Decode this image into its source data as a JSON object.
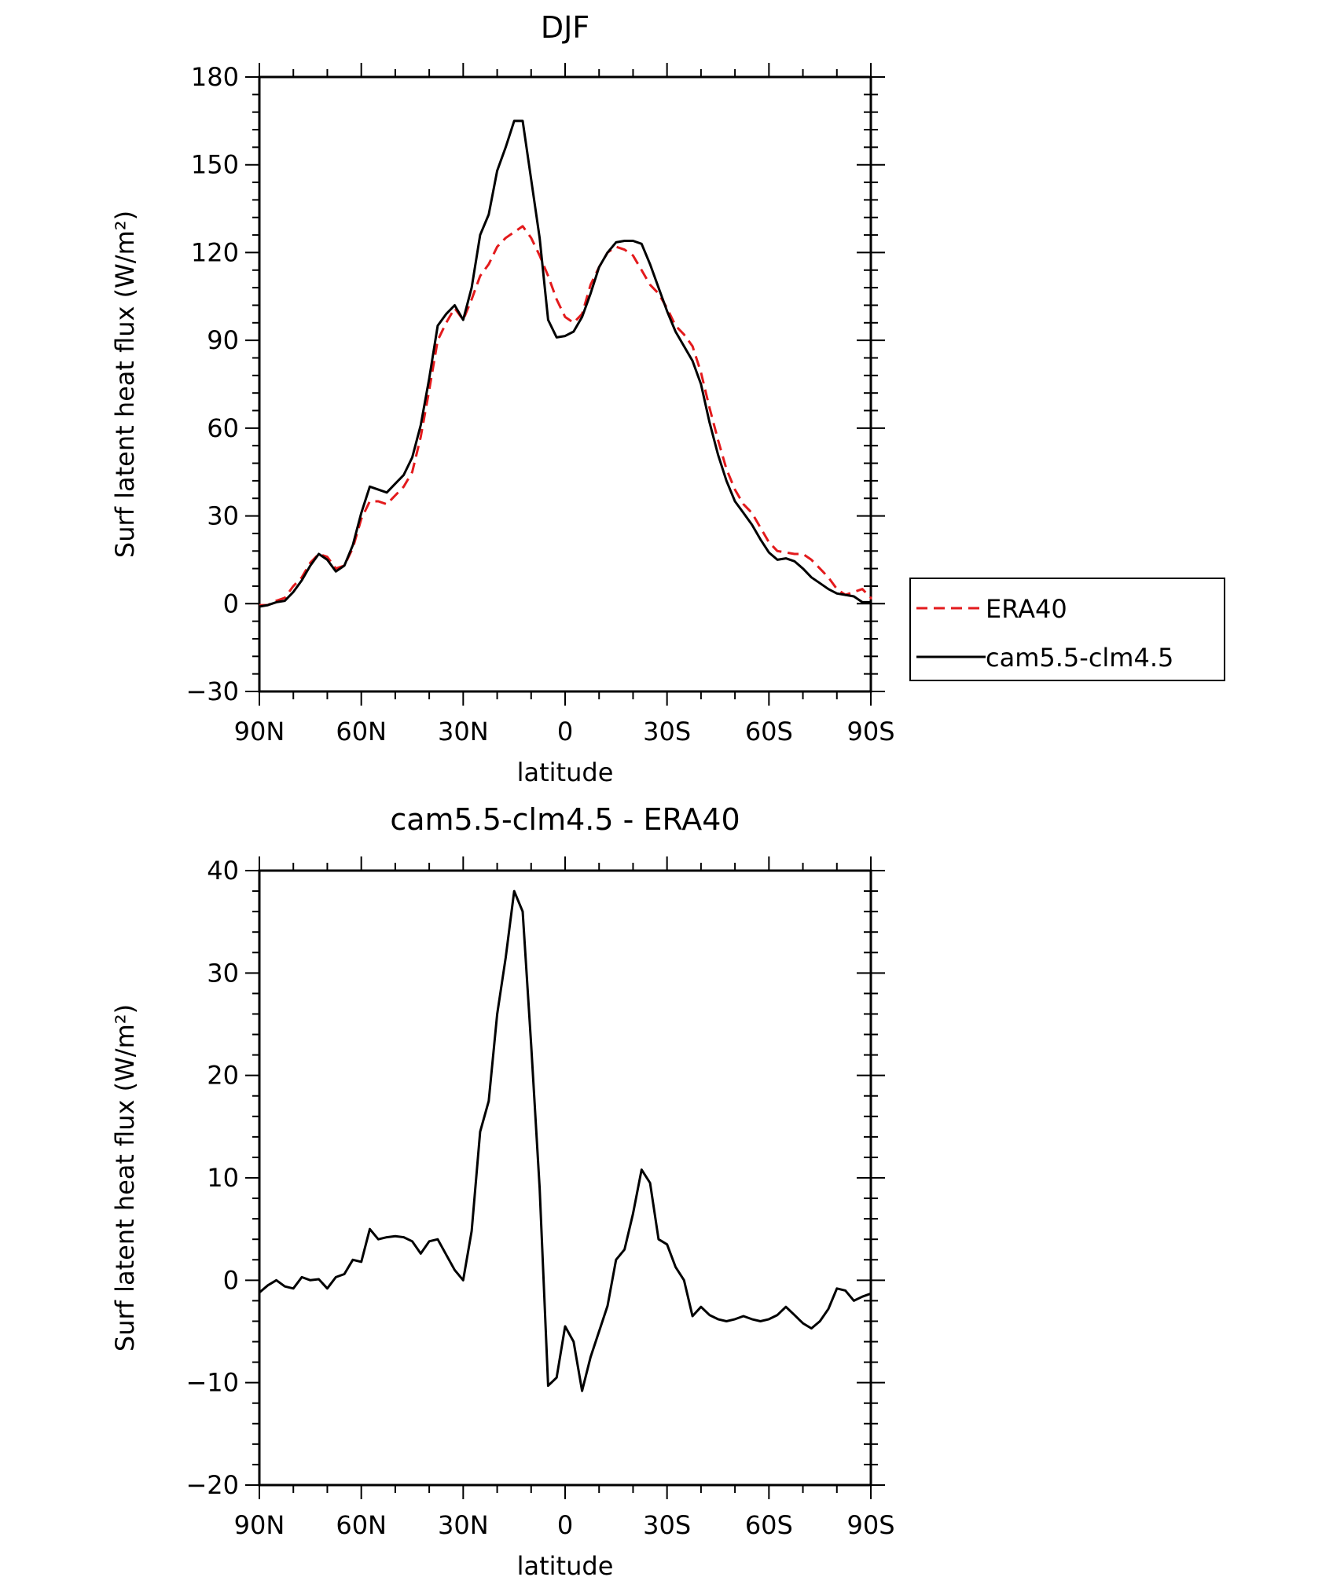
{
  "chart_data": [
    {
      "type": "line",
      "title": "DJF",
      "xlabel": "latitude",
      "ylabel": "Surf latent heat flux (W/m²)",
      "xlim": [
        90,
        -90
      ],
      "ylim": [
        -30,
        180
      ],
      "yticks": [
        -30,
        0,
        30,
        60,
        90,
        120,
        150,
        180
      ],
      "xticks": [
        {
          "value": 90,
          "label": "90N"
        },
        {
          "value": 60,
          "label": "60N"
        },
        {
          "value": 30,
          "label": "30N"
        },
        {
          "value": 0,
          "label": "0"
        },
        {
          "value": -30,
          "label": "30S"
        },
        {
          "value": -60,
          "label": "60S"
        },
        {
          "value": -90,
          "label": "90S"
        }
      ],
      "grid": false,
      "legend": {
        "placement": "right",
        "entries": [
          {
            "name": "ERA40",
            "color": "#e31a1c",
            "style": "dashed"
          },
          {
            "name": "cam5.5-clm4.5",
            "color": "#000000",
            "style": "solid"
          }
        ]
      },
      "series": [
        {
          "name": "ERA40",
          "color": "#e31a1c",
          "style": "dashed",
          "points": [
            [
              90,
              -0.5
            ],
            [
              87.5,
              -0.5
            ],
            [
              85,
              1
            ],
            [
              82.5,
              2
            ],
            [
              80,
              6
            ],
            [
              77.5,
              9
            ],
            [
              75,
              14
            ],
            [
              72.5,
              17
            ],
            [
              70,
              16
            ],
            [
              67.5,
              12
            ],
            [
              65,
              13
            ],
            [
              62.5,
              19
            ],
            [
              60,
              29
            ],
            [
              57.5,
              35
            ],
            [
              55,
              35
            ],
            [
              52.5,
              34
            ],
            [
              50,
              37
            ],
            [
              47.5,
              40
            ],
            [
              45,
              45
            ],
            [
              42.5,
              57
            ],
            [
              40,
              73
            ],
            [
              37.5,
              90
            ],
            [
              35,
              96
            ],
            [
              32.5,
              101
            ],
            [
              30,
              97
            ],
            [
              27.5,
              104
            ],
            [
              25,
              112
            ],
            [
              22.5,
              116
            ],
            [
              20,
              122
            ],
            [
              17.5,
              125
            ],
            [
              15,
              127
            ],
            [
              12.5,
              129
            ],
            [
              10,
              125
            ],
            [
              7.5,
              119
            ],
            [
              5,
              112
            ],
            [
              2.5,
              104
            ],
            [
              0,
              98
            ],
            [
              -2.5,
              96
            ],
            [
              -5,
              99
            ],
            [
              -7.5,
              109
            ],
            [
              -10,
              115
            ],
            [
              -12.5,
              120
            ],
            [
              -15,
              122
            ],
            [
              -17.5,
              121
            ],
            [
              -20,
              119
            ],
            [
              -22.5,
              114
            ],
            [
              -25,
              109
            ],
            [
              -27.5,
              106
            ],
            [
              -30,
              101
            ],
            [
              -32.5,
              95
            ],
            [
              -35,
              92
            ],
            [
              -37.5,
              88
            ],
            [
              -40,
              79
            ],
            [
              -42.5,
              67
            ],
            [
              -45,
              56
            ],
            [
              -47.5,
              46
            ],
            [
              -50,
              39
            ],
            [
              -52.5,
              34
            ],
            [
              -55,
              31
            ],
            [
              -57.5,
              26
            ],
            [
              -60,
              21
            ],
            [
              -62.5,
              18
            ],
            [
              -65,
              17.5
            ],
            [
              -67.5,
              17
            ],
            [
              -70,
              17
            ],
            [
              -72.5,
              15
            ],
            [
              -75,
              12
            ],
            [
              -77.5,
              9
            ],
            [
              -80,
              5
            ],
            [
              -82.5,
              3
            ],
            [
              -85,
              4
            ],
            [
              -87.5,
              5
            ],
            [
              -90,
              2
            ],
            [
              -90,
              1.5
            ]
          ]
        },
        {
          "name": "cam5.5-clm4.5",
          "color": "#000000",
          "style": "solid",
          "points": [
            [
              90,
              -1
            ],
            [
              87.5,
              -0.5
            ],
            [
              85,
              0.5
            ],
            [
              82.5,
              1
            ],
            [
              80,
              4
            ],
            [
              77.5,
              8
            ],
            [
              75,
              13
            ],
            [
              72.5,
              17
            ],
            [
              70,
              15
            ],
            [
              67.5,
              11
            ],
            [
              65,
              13
            ],
            [
              62.5,
              20
            ],
            [
              60,
              31
            ],
            [
              57.5,
              40
            ],
            [
              55,
              39
            ],
            [
              52.5,
              38
            ],
            [
              50,
              41
            ],
            [
              47.5,
              44
            ],
            [
              45,
              50
            ],
            [
              42.5,
              61
            ],
            [
              40,
              77
            ],
            [
              37.5,
              95
            ],
            [
              35,
              99
            ],
            [
              32.5,
              102
            ],
            [
              30,
              97
            ],
            [
              27.5,
              108
            ],
            [
              25,
              126
            ],
            [
              22.5,
              133
            ],
            [
              20,
              148
            ],
            [
              17.5,
              156
            ],
            [
              15,
              165
            ],
            [
              12.5,
              165
            ],
            [
              10,
              145
            ],
            [
              7.5,
              125
            ],
            [
              5,
              97
            ],
            [
              2.5,
              91
            ],
            [
              0,
              91.5
            ],
            [
              -2.5,
              93
            ],
            [
              -5,
              98
            ],
            [
              -7.5,
              106
            ],
            [
              -10,
              115
            ],
            [
              -12.5,
              120
            ],
            [
              -15,
              123.5
            ],
            [
              -17.5,
              124
            ],
            [
              -20,
              124
            ],
            [
              -22.5,
              123
            ],
            [
              -25,
              116
            ],
            [
              -27.5,
              108
            ],
            [
              -30,
              100
            ],
            [
              -32.5,
              93
            ],
            [
              -35,
              88
            ],
            [
              -37.5,
              83
            ],
            [
              -40,
              75
            ],
            [
              -42.5,
              62
            ],
            [
              -45,
              51
            ],
            [
              -47.5,
              42
            ],
            [
              -50,
              35
            ],
            [
              -52.5,
              31
            ],
            [
              -55,
              27
            ],
            [
              -57.5,
              22
            ],
            [
              -60,
              17.5
            ],
            [
              -62.5,
              15
            ],
            [
              -65,
              15.5
            ],
            [
              -67.5,
              14.5
            ],
            [
              -70,
              12
            ],
            [
              -72.5,
              9
            ],
            [
              -75,
              7
            ],
            [
              -77.5,
              5
            ],
            [
              -80,
              3.5
            ],
            [
              -82.5,
              3
            ],
            [
              -85,
              2.5
            ],
            [
              -87.5,
              0.5
            ],
            [
              -90,
              0.5
            ]
          ]
        }
      ]
    },
    {
      "type": "line",
      "title": "cam5.5-clm4.5 - ERA40",
      "xlabel": "latitude",
      "ylabel": "Surf latent heat flux (W/m²)",
      "xlim": [
        90,
        -90
      ],
      "ylim": [
        -20,
        40
      ],
      "yticks": [
        -20,
        -10,
        0,
        10,
        20,
        30,
        40
      ],
      "xticks": [
        {
          "value": 90,
          "label": "90N"
        },
        {
          "value": 60,
          "label": "60N"
        },
        {
          "value": 30,
          "label": "30N"
        },
        {
          "value": 0,
          "label": "0"
        },
        {
          "value": -30,
          "label": "30S"
        },
        {
          "value": -60,
          "label": "60S"
        },
        {
          "value": -90,
          "label": "90S"
        }
      ],
      "grid": false,
      "series": [
        {
          "color": "#000000",
          "style": "solid",
          "points": [
            [
              90,
              -1.2
            ],
            [
              87.5,
              -0.5
            ],
            [
              85,
              0
            ],
            [
              82.5,
              -0.6
            ],
            [
              80,
              -0.8
            ],
            [
              77.5,
              0.3
            ],
            [
              75,
              0
            ],
            [
              72.5,
              0.1
            ],
            [
              70,
              -0.8
            ],
            [
              67.5,
              0.3
            ],
            [
              65,
              0.6
            ],
            [
              62.5,
              2
            ],
            [
              60,
              1.8
            ],
            [
              57.5,
              5
            ],
            [
              55,
              4
            ],
            [
              52.5,
              4.2
            ],
            [
              50,
              4.3
            ],
            [
              47.5,
              4.2
            ],
            [
              45,
              3.8
            ],
            [
              42.5,
              2.6
            ],
            [
              40,
              3.8
            ],
            [
              37.5,
              4
            ],
            [
              35,
              2.5
            ],
            [
              32.5,
              1
            ],
            [
              30,
              0
            ],
            [
              27.5,
              4.8
            ],
            [
              25,
              14.5
            ],
            [
              22.5,
              17.5
            ],
            [
              20,
              26
            ],
            [
              17.5,
              31.5
            ],
            [
              15,
              38
            ],
            [
              12.5,
              36
            ],
            [
              10,
              23
            ],
            [
              7.5,
              9
            ],
            [
              5,
              -10.3
            ],
            [
              2.5,
              -9.5
            ],
            [
              0,
              -4.5
            ],
            [
              -2.5,
              -6
            ],
            [
              -5,
              -10.8
            ],
            [
              -7.5,
              -7.5
            ],
            [
              -10,
              -5
            ],
            [
              -12.5,
              -2.5
            ],
            [
              -15,
              2
            ],
            [
              -17.5,
              3
            ],
            [
              -20,
              6.5
            ],
            [
              -22.5,
              10.8
            ],
            [
              -25,
              9.5
            ],
            [
              -27.5,
              4
            ],
            [
              -30,
              3.5
            ],
            [
              -32.5,
              1.3
            ],
            [
              -35,
              0
            ],
            [
              -37.5,
              -3.5
            ],
            [
              -40,
              -2.6
            ],
            [
              -42.5,
              -3.4
            ],
            [
              -45,
              -3.8
            ],
            [
              -47.5,
              -4
            ],
            [
              -50,
              -3.8
            ],
            [
              -52.5,
              -3.5
            ],
            [
              -55,
              -3.8
            ],
            [
              -57.5,
              -4
            ],
            [
              -60,
              -3.8
            ],
            [
              -62.5,
              -3.4
            ],
            [
              -65,
              -2.6
            ],
            [
              -67.5,
              -3.4
            ],
            [
              -70,
              -4.2
            ],
            [
              -72.5,
              -4.7
            ],
            [
              -75,
              -4
            ],
            [
              -77.5,
              -2.8
            ],
            [
              -80,
              -0.8
            ],
            [
              -82.5,
              -1
            ],
            [
              -85,
              -2
            ],
            [
              -87.5,
              -1.6
            ],
            [
              -90,
              -1.3
            ]
          ]
        }
      ]
    }
  ]
}
